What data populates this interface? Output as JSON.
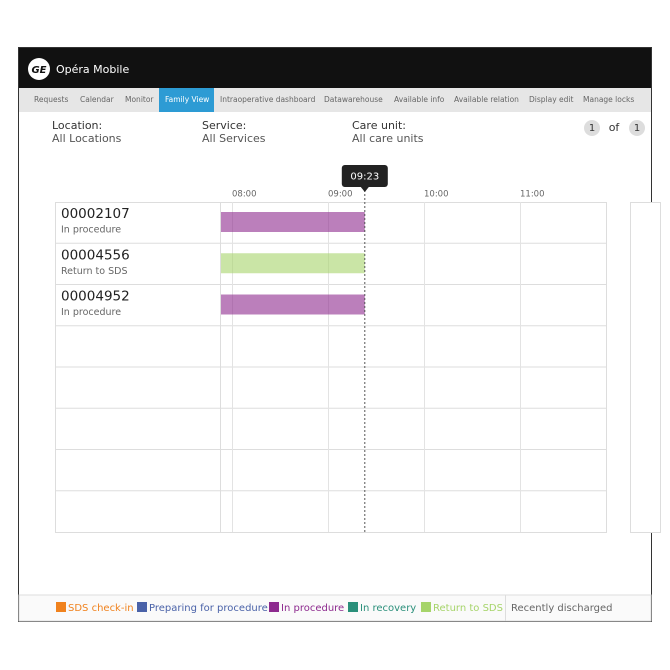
{
  "app": {
    "logo": "GE",
    "title": "Opéra Mobile"
  },
  "nav": {
    "tabs": [
      "Requests",
      "Calendar",
      "Monitor",
      "Family View",
      "Intraoperative dashboard",
      "Datawarehouse",
      "Available info",
      "Available relation",
      "Display edit",
      "Manage locks"
    ],
    "active": 3
  },
  "filters": [
    {
      "label": "Location:",
      "value": "All Locations"
    },
    {
      "label": "Service:",
      "value": "All Services"
    },
    {
      "label": "Care unit:",
      "value": "All care units"
    }
  ],
  "pager": {
    "current": 1,
    "of": "of",
    "total": 1
  },
  "timeline": {
    "current_time": "09:23",
    "hours": [
      "08:00",
      "09:00",
      "10:00",
      "11:00"
    ]
  },
  "rows": [
    {
      "id": "00002107",
      "status": "In procedure"
    },
    {
      "id": "00004556",
      "status": "Return to SDS"
    },
    {
      "id": "00004952",
      "status": "In procedure"
    }
  ],
  "legend": [
    {
      "label": "SDS check-in",
      "color": "#f0821e"
    },
    {
      "label": "Preparing for procedure",
      "color": "#4a62a8"
    },
    {
      "label": "In procedure",
      "color": "#8d2a8e"
    },
    {
      "label": "In recovery",
      "color": "#2a8f7a"
    },
    {
      "label": "Return to SDS",
      "color": "#a6d46a"
    }
  ],
  "recently_discharged": "Recently discharged"
}
